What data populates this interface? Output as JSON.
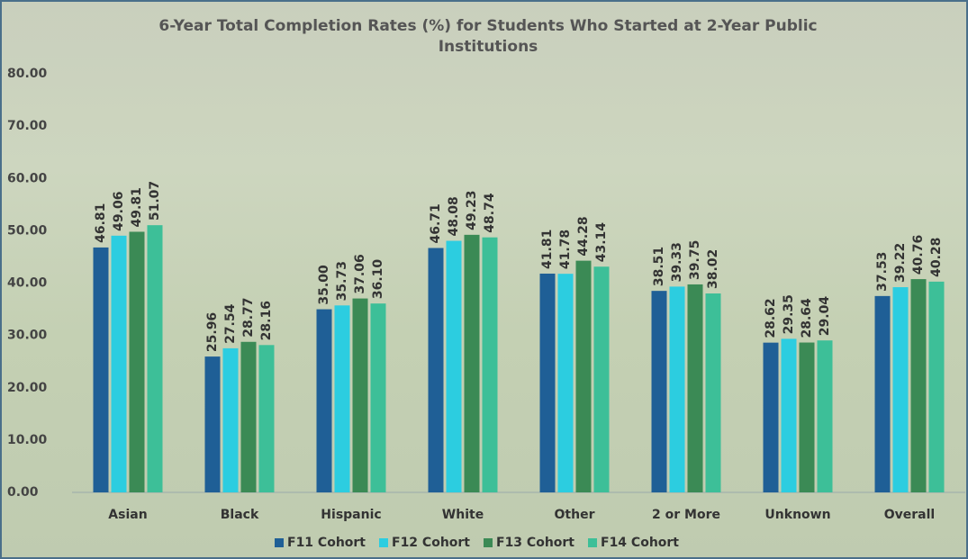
{
  "chart_data": {
    "type": "bar",
    "title": "6-Year Total Completion Rates (%) for Students Who Started at 2-Year Public Institutions",
    "categories": [
      "Asian",
      "Black",
      "Hispanic",
      "White",
      "Other",
      "2 or More",
      "Unknown",
      "Overall"
    ],
    "series": [
      {
        "name": "F11 Cohort",
        "color": "#1f5f96",
        "values": [
          46.81,
          25.96,
          35.0,
          46.71,
          41.81,
          38.51,
          28.62,
          37.53
        ],
        "value_labels": [
          "46.81",
          "25.96",
          "35.00",
          "46.71",
          "41.81",
          "38.51",
          "28.62",
          "37.53"
        ]
      },
      {
        "name": "F12 Cohort",
        "color": "#2ccde0",
        "values": [
          49.06,
          27.54,
          35.73,
          48.08,
          41.78,
          39.33,
          29.35,
          39.22
        ],
        "value_labels": [
          "49.06",
          "27.54",
          "35.73",
          "48.08",
          "41.78",
          "39.33",
          "29.35",
          "39.22"
        ]
      },
      {
        "name": "F13 Cohort",
        "color": "#3b8a55",
        "values": [
          49.81,
          28.77,
          37.06,
          49.23,
          44.28,
          39.75,
          28.64,
          40.76
        ],
        "value_labels": [
          "49.81",
          "28.77",
          "37.06",
          "49.23",
          "44.28",
          "39.75",
          "28.64",
          "40.76"
        ]
      },
      {
        "name": "F14 Cohort",
        "color": "#3dbf98",
        "values": [
          51.07,
          28.16,
          36.1,
          48.74,
          43.14,
          38.02,
          29.04,
          40.28
        ],
        "value_labels": [
          "51.07",
          "28.16",
          "36.10",
          "48.74",
          "43.14",
          "38.02",
          "29.04",
          "40.28"
        ]
      }
    ],
    "ylim": [
      0,
      80
    ],
    "yticks": [
      {
        "value": 0,
        "label": "0.00"
      },
      {
        "value": 10,
        "label": "10.00"
      },
      {
        "value": 20,
        "label": "20.00"
      },
      {
        "value": 30,
        "label": "30.00"
      },
      {
        "value": 40,
        "label": "40.00"
      },
      {
        "value": 50,
        "label": "50.00"
      },
      {
        "value": 60,
        "label": "60.00"
      },
      {
        "value": 70,
        "label": "70.00"
      },
      {
        "value": 80,
        "label": "80.00"
      }
    ],
    "legend": "bottom"
  }
}
